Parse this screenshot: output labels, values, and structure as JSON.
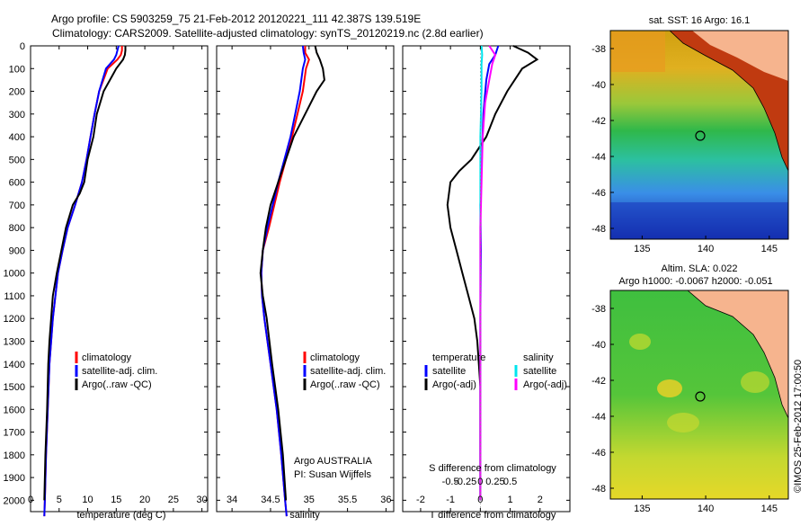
{
  "header": {
    "line1": "Argo profile: CS 5903259_75 21-Feb-2012 20120221_111 42.387S 139.519E",
    "line2": "Climatology: CARS2009. Satellite-adjusted climatology: synTS_20120219.nc (2.8d earlier)"
  },
  "colors": {
    "climatology": "#ff0000",
    "satellite": "#0000ff",
    "argo": "#000000",
    "sal_satellite": "#00e5ee",
    "sal_argo": "#ff00ff",
    "land": "#f6b48e"
  },
  "depth_ticks": [
    0,
    100,
    200,
    300,
    400,
    500,
    600,
    700,
    800,
    900,
    1000,
    1100,
    1200,
    1300,
    1400,
    1500,
    1600,
    1700,
    1800,
    1900,
    2000
  ],
  "legend": {
    "climatology": "climatology",
    "satellite_clim": "satellite-adj. clim.",
    "argo_raw": "Argo(..raw -QC)",
    "temperature": "temperature",
    "salinity": "salinity",
    "satellite": "satellite",
    "argo_adj": "Argo(-adj)"
  },
  "annotations": {
    "argo_australia": "Argo AUSTRALIA",
    "pi": "PI: Susan Wijffels"
  },
  "sst_map": {
    "title": "sat. SST: 16 Argo: 16.1",
    "yticks": [
      "-38",
      "-40",
      "-42",
      "-44",
      "-46",
      "-48"
    ],
    "xticks": [
      "135",
      "140",
      "145"
    ]
  },
  "sla_map": {
    "title1": "Altim. SLA: 0.022",
    "title2": "Argo h1000: -0.0067 h2000: -0.051",
    "yticks": [
      "-38",
      "-40",
      "-42",
      "-44",
      "-46",
      "-48"
    ],
    "xticks": [
      "135",
      "140",
      "145"
    ]
  },
  "footer": "©IMOS 25-Feb-2012 17:00:50",
  "chart_data": [
    {
      "type": "line",
      "xlabel": "temperature (deg C)",
      "ylabel": "",
      "xlim": [
        0,
        31
      ],
      "ylim": [
        2050,
        0
      ],
      "xticks": [
        0,
        5,
        10,
        15,
        20,
        25,
        30
      ],
      "series": [
        {
          "name": "climatology",
          "depth": [
            0,
            20,
            40,
            60,
            100,
            200,
            300,
            400,
            500,
            600,
            700,
            800,
            900,
            1000,
            1200,
            1400,
            1600,
            1800,
            2000,
            2070
          ],
          "values": [
            16.0,
            16.0,
            15.8,
            15.2,
            13.5,
            12.0,
            11.2,
            10.5,
            9.8,
            9.0,
            7.8,
            6.5,
            5.6,
            4.8,
            3.9,
            3.3,
            3.0,
            2.7,
            2.5,
            2.4
          ]
        },
        {
          "name": "satellite-adj. clim.",
          "depth": [
            0,
            20,
            40,
            60,
            100,
            200,
            300,
            400,
            500,
            600,
            700,
            800,
            900,
            1000,
            1200,
            1400,
            1600,
            1800,
            2000,
            2070
          ],
          "values": [
            15.4,
            15.2,
            15.0,
            14.6,
            13.2,
            12.0,
            11.2,
            10.5,
            9.8,
            9.0,
            7.8,
            6.5,
            5.6,
            4.8,
            3.9,
            3.3,
            3.0,
            2.7,
            2.5,
            2.4
          ]
        },
        {
          "name": "Argo(..raw -QC)",
          "depth": [
            0,
            20,
            40,
            60,
            100,
            200,
            300,
            400,
            500,
            600,
            650,
            700,
            800,
            900,
            1000,
            1100,
            1200,
            1300,
            1400,
            1600,
            1800,
            2000
          ],
          "values": [
            16.6,
            16.6,
            16.5,
            16.2,
            15.0,
            12.8,
            11.6,
            11.0,
            10.0,
            9.4,
            8.6,
            7.4,
            6.2,
            5.4,
            4.6,
            3.9,
            3.6,
            3.3,
            3.1,
            2.9,
            2.6,
            2.4
          ]
        }
      ]
    },
    {
      "type": "line",
      "xlabel": "salinity",
      "ylabel": "",
      "xlim": [
        33.8,
        36.1
      ],
      "ylim": [
        2050,
        0
      ],
      "xticks": [
        34,
        34.5,
        35,
        35.5,
        36
      ],
      "series": [
        {
          "name": "climatology",
          "depth": [
            0,
            30,
            60,
            100,
            200,
            300,
            400,
            500,
            600,
            700,
            800,
            900,
            1000,
            1100,
            1200,
            1400,
            1600,
            1800,
            2000,
            2070
          ],
          "values": [
            34.95,
            34.95,
            35.0,
            34.96,
            34.92,
            34.85,
            34.78,
            34.7,
            34.62,
            34.55,
            34.48,
            34.4,
            34.38,
            34.39,
            34.42,
            34.5,
            34.58,
            34.64,
            34.69,
            34.71
          ]
        },
        {
          "name": "satellite-adj. clim.",
          "depth": [
            0,
            30,
            60,
            100,
            200,
            300,
            400,
            500,
            600,
            700,
            800,
            900,
            1000,
            1100,
            1200,
            1400,
            1600,
            1800,
            2000,
            2070
          ],
          "values": [
            34.92,
            34.93,
            34.95,
            34.92,
            34.88,
            34.82,
            34.76,
            34.68,
            34.6,
            34.53,
            34.46,
            34.4,
            34.38,
            34.39,
            34.42,
            34.5,
            34.58,
            34.64,
            34.69,
            34.71
          ]
        },
        {
          "name": "Argo(..raw -QC)",
          "depth": [
            0,
            30,
            60,
            100,
            150,
            200,
            300,
            400,
            500,
            600,
            700,
            800,
            900,
            1000,
            1100,
            1200,
            1400,
            1600,
            1800,
            2000
          ],
          "values": [
            35.08,
            35.1,
            35.14,
            35.18,
            35.2,
            35.1,
            34.95,
            34.8,
            34.7,
            34.6,
            34.5,
            34.44,
            34.4,
            34.37,
            34.4,
            34.45,
            34.52,
            34.6,
            34.66,
            34.7
          ]
        }
      ]
    },
    {
      "type": "line",
      "xlabel": "T difference from climatology",
      "ylabel": "",
      "title": "S difference from climatology",
      "xlim": [
        -2.6,
        3.0
      ],
      "ylim": [
        2050,
        0
      ],
      "xticks": [
        -2,
        -1,
        0,
        1,
        2
      ],
      "xticks_top": [
        -0.5,
        -0.25,
        0,
        0.25,
        0.5
      ],
      "series": [
        {
          "name": "temperature satellite",
          "depth": [
            0,
            40,
            80,
            150,
            300,
            500,
            700,
            900,
            1200,
            1500,
            1800,
            2000
          ],
          "values": [
            0.6,
            0.5,
            0.3,
            0.2,
            0.1,
            0.05,
            0.0,
            0.02,
            0.0,
            0.0,
            0.0,
            0.0
          ]
        },
        {
          "name": "temperature Argo(-adj)",
          "depth": [
            0,
            30,
            60,
            100,
            200,
            300,
            400,
            500,
            550,
            600,
            700,
            800,
            900,
            1000,
            1100,
            1200,
            1300,
            1400,
            1500,
            1600,
            1800,
            2000
          ],
          "values": [
            1.1,
            1.6,
            1.9,
            1.4,
            0.9,
            0.5,
            0.2,
            -0.3,
            -0.7,
            -1.0,
            -1.1,
            -1.0,
            -0.8,
            -0.6,
            -0.4,
            -0.2,
            -0.1,
            -0.05,
            0.0,
            0.0,
            0.0,
            0.0
          ]
        },
        {
          "name": "salinity satellite",
          "depth": [
            0,
            40,
            80,
            200,
            400,
            700,
            1000,
            1400,
            1800,
            2000
          ],
          "values": [
            0.02,
            0.03,
            0.02,
            0.02,
            0.0,
            0.0,
            0.0,
            0.0,
            0.0,
            0.0
          ]
        },
        {
          "name": "salinity Argo(-adj)",
          "depth": [
            0,
            40,
            80,
            150,
            250,
            400,
            600,
            800,
            1000,
            1200,
            1400,
            1600,
            1800,
            2000
          ],
          "values": [
            0.15,
            0.25,
            0.2,
            0.15,
            0.08,
            0.04,
            0.02,
            0.0,
            0.0,
            0.0,
            0.0,
            0.0,
            0.0,
            0.0
          ]
        }
      ]
    }
  ]
}
